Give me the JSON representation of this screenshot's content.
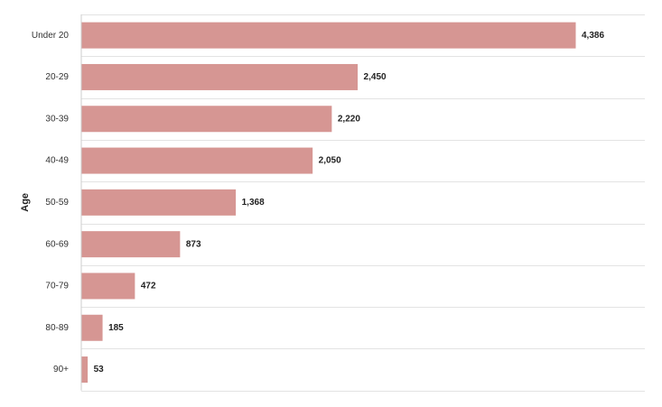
{
  "chart_data": {
    "type": "bar",
    "orientation": "horizontal",
    "categories": [
      "Under 20",
      "20-29",
      "30-39",
      "40-49",
      "50-59",
      "60-69",
      "70-79",
      "80-89",
      "90+"
    ],
    "values": [
      4386,
      2450,
      2220,
      2050,
      1368,
      873,
      472,
      185,
      53
    ],
    "value_labels": [
      "4,386",
      "2,450",
      "2,220",
      "2,050",
      "1,368",
      "873",
      "472",
      "185",
      "53"
    ],
    "title": "",
    "xlabel": "",
    "ylabel": "Age",
    "xlim": [
      0,
      5000
    ],
    "grid": "horizontal separators between categories",
    "legend": "none",
    "colors": {
      "bar": "#d69693",
      "grid": "#e3e3e3",
      "axis": "#cccccc"
    }
  }
}
